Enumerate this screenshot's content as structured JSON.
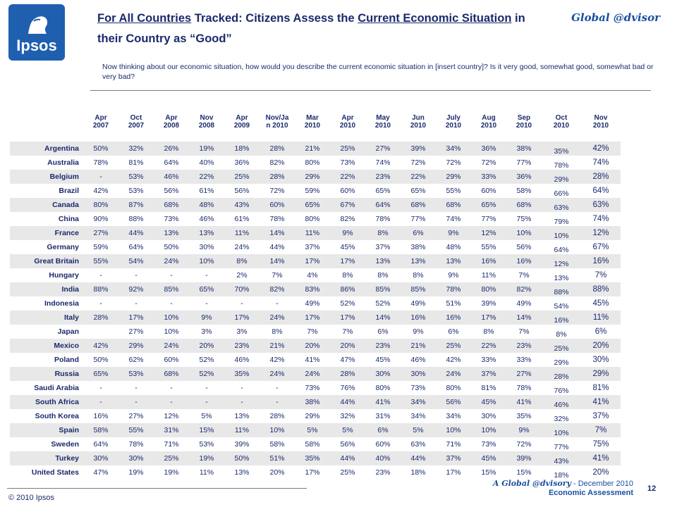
{
  "logo": {
    "text": "Ipsos"
  },
  "title": {
    "part1": "For All Countries",
    "part2": " Tracked: Citizens Assess the ",
    "part3": "Current Economic Situation",
    "part4": " in their Country as “Good”"
  },
  "brand_right": "Global @dvisor",
  "question": "Now thinking about our economic situation, how would you describe the current economic situation in [insert country]? Is it very good, somewhat good, somewhat bad or very bad?",
  "footer": {
    "copyright": "© 2010 Ipsos",
    "line1_brand": "A Global @dvisory",
    "line1_rest": " - December 2010",
    "line2": "Economic Assessment",
    "page": "12"
  },
  "chart_data": {
    "type": "table",
    "columns": [
      [
        "Apr",
        "2007"
      ],
      [
        "Oct",
        "2007"
      ],
      [
        "Apr",
        "2008"
      ],
      [
        "Nov",
        "2008"
      ],
      [
        "Apr",
        "2009"
      ],
      [
        "Nov/Ja",
        "n 2010"
      ],
      [
        "Mar",
        "2010"
      ],
      [
        "Apr",
        "2010"
      ],
      [
        "May",
        "2010"
      ],
      [
        "Jun",
        "2010"
      ],
      [
        "July",
        "2010"
      ],
      [
        "Aug",
        "2010"
      ],
      [
        "Sep",
        "2010"
      ],
      [
        "Oct",
        "2010"
      ],
      [
        "Nov",
        "2010"
      ]
    ],
    "rows": [
      {
        "country": "Argentina",
        "values": [
          "50%",
          "32%",
          "26%",
          "19%",
          "18%",
          "28%",
          "21%",
          "25%",
          "27%",
          "39%",
          "34%",
          "36%",
          "38%",
          "35%",
          "42%"
        ]
      },
      {
        "country": "Australia",
        "values": [
          "78%",
          "81%",
          "64%",
          "40%",
          "36%",
          "82%",
          "80%",
          "73%",
          "74%",
          "72%",
          "72%",
          "72%",
          "77%",
          "78%",
          "74%"
        ]
      },
      {
        "country": "Belgium",
        "values": [
          "-",
          "53%",
          "46%",
          "22%",
          "25%",
          "28%",
          "29%",
          "22%",
          "23%",
          "22%",
          "29%",
          "33%",
          "36%",
          "29%",
          "28%"
        ]
      },
      {
        "country": "Brazil",
        "values": [
          "42%",
          "53%",
          "56%",
          "61%",
          "56%",
          "72%",
          "59%",
          "60%",
          "65%",
          "65%",
          "55%",
          "60%",
          "58%",
          "66%",
          "64%"
        ]
      },
      {
        "country": "Canada",
        "values": [
          "80%",
          "87%",
          "68%",
          "48%",
          "43%",
          "60%",
          "65%",
          "67%",
          "64%",
          "68%",
          "68%",
          "65%",
          "68%",
          "63%",
          "63%"
        ]
      },
      {
        "country": "China",
        "values": [
          "90%",
          "88%",
          "73%",
          "46%",
          "61%",
          "78%",
          "80%",
          "82%",
          "78%",
          "77%",
          "74%",
          "77%",
          "75%",
          "79%",
          "74%"
        ]
      },
      {
        "country": "France",
        "values": [
          "27%",
          "44%",
          "13%",
          "13%",
          "11%",
          "14%",
          "11%",
          "9%",
          "8%",
          "6%",
          "9%",
          "12%",
          "10%",
          "10%",
          "12%"
        ]
      },
      {
        "country": "Germany",
        "values": [
          "59%",
          "64%",
          "50%",
          "30%",
          "24%",
          "44%",
          "37%",
          "45%",
          "37%",
          "38%",
          "48%",
          "55%",
          "56%",
          "64%",
          "67%"
        ]
      },
      {
        "country": "Great Britain",
        "values": [
          "55%",
          "54%",
          "24%",
          "10%",
          "8%",
          "14%",
          "17%",
          "17%",
          "13%",
          "13%",
          "13%",
          "16%",
          "16%",
          "12%",
          "16%"
        ]
      },
      {
        "country": "Hungary",
        "values": [
          "-",
          "-",
          "-",
          "-",
          "2%",
          "7%",
          "4%",
          "8%",
          "8%",
          "8%",
          "9%",
          "11%",
          "7%",
          "13%",
          "7%"
        ]
      },
      {
        "country": "India",
        "values": [
          "88%",
          "92%",
          "85%",
          "65%",
          "70%",
          "82%",
          "83%",
          "86%",
          "85%",
          "85%",
          "78%",
          "80%",
          "82%",
          "88%",
          "88%"
        ]
      },
      {
        "country": "Indonesia",
        "values": [
          "-",
          "-",
          "-",
          "-",
          "-",
          "-",
          "49%",
          "52%",
          "52%",
          "49%",
          "51%",
          "39%",
          "49%",
          "54%",
          "45%"
        ]
      },
      {
        "country": "Italy",
        "values": [
          "28%",
          "17%",
          "10%",
          "9%",
          "17%",
          "24%",
          "17%",
          "17%",
          "14%",
          "16%",
          "16%",
          "17%",
          "14%",
          "16%",
          "11%"
        ]
      },
      {
        "country": "Japan",
        "values": [
          "",
          "27%",
          "10%",
          "3%",
          "3%",
          "8%",
          "7%",
          "7%",
          "6%",
          "9%",
          "6%",
          "8%",
          "7%",
          "8%",
          "6%"
        ]
      },
      {
        "country": "Mexico",
        "values": [
          "42%",
          "29%",
          "24%",
          "20%",
          "23%",
          "21%",
          "20%",
          "20%",
          "23%",
          "21%",
          "25%",
          "22%",
          "23%",
          "25%",
          "20%"
        ]
      },
      {
        "country": "Poland",
        "values": [
          "50%",
          "62%",
          "60%",
          "52%",
          "46%",
          "42%",
          "41%",
          "47%",
          "45%",
          "46%",
          "42%",
          "33%",
          "33%",
          "29%",
          "30%"
        ]
      },
      {
        "country": "Russia",
        "values": [
          "65%",
          "53%",
          "68%",
          "52%",
          "35%",
          "24%",
          "24%",
          "28%",
          "30%",
          "30%",
          "24%",
          "37%",
          "27%",
          "28%",
          "29%"
        ]
      },
      {
        "country": "Saudi Arabia",
        "values": [
          "-",
          "-",
          "-",
          "-",
          "-",
          "-",
          "73%",
          "76%",
          "80%",
          "73%",
          "80%",
          "81%",
          "78%",
          "76%",
          "81%"
        ]
      },
      {
        "country": "South Africa",
        "values": [
          "-",
          "-",
          "-",
          "-",
          "-",
          "-",
          "38%",
          "44%",
          "41%",
          "34%",
          "56%",
          "45%",
          "41%",
          "46%",
          "41%"
        ]
      },
      {
        "country": "South Korea",
        "values": [
          "16%",
          "27%",
          "12%",
          "5%",
          "13%",
          "28%",
          "29%",
          "32%",
          "31%",
          "34%",
          "34%",
          "30%",
          "35%",
          "32%",
          "37%"
        ]
      },
      {
        "country": "Spain",
        "values": [
          "58%",
          "55%",
          "31%",
          "15%",
          "11%",
          "10%",
          "5%",
          "5%",
          "6%",
          "5%",
          "10%",
          "10%",
          "9%",
          "10%",
          "7%"
        ]
      },
      {
        "country": "Sweden",
        "values": [
          "64%",
          "78%",
          "71%",
          "53%",
          "39%",
          "58%",
          "58%",
          "56%",
          "60%",
          "63%",
          "71%",
          "73%",
          "72%",
          "77%",
          "75%"
        ]
      },
      {
        "country": "Turkey",
        "values": [
          "30%",
          "30%",
          "25%",
          "19%",
          "50%",
          "51%",
          "35%",
          "44%",
          "40%",
          "44%",
          "37%",
          "45%",
          "39%",
          "43%",
          "41%"
        ]
      },
      {
        "country": "United States",
        "values": [
          "47%",
          "19%",
          "19%",
          "11%",
          "13%",
          "20%",
          "17%",
          "25%",
          "23%",
          "18%",
          "17%",
          "15%",
          "15%",
          "18%",
          "20%"
        ]
      }
    ]
  }
}
